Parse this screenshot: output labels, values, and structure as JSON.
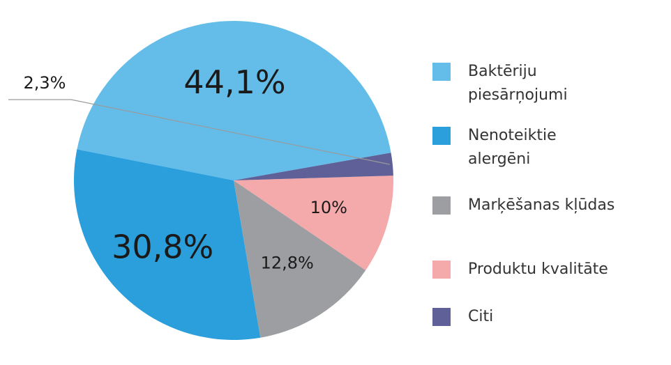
{
  "chart_data": {
    "type": "pie",
    "categories": [
      "Baktēriju piesārņojumi",
      "Nenoteiktie alergēni",
      "Marķēšanas kļūdas",
      "Produktu kvalitāte",
      "Citi"
    ],
    "values": [
      44.1,
      30.8,
      12.8,
      10,
      2.3
    ],
    "value_labels": [
      "44,1%",
      "30,8%",
      "12,8%",
      "10%",
      "2,3%"
    ],
    "colors": [
      "#64bde9",
      "#2a9fdc",
      "#9d9ea1",
      "#f4a9aa",
      "#5e6097"
    ],
    "legend_position": "right"
  },
  "legend": {
    "items": [
      {
        "label": "Baktēriju piesārņojumi",
        "color": "#64bde9"
      },
      {
        "label": "Nenoteiktie alergēni",
        "color": "#2a9fdc"
      },
      {
        "label": "Marķēšanas kļūdas",
        "color": "#9d9ea1"
      },
      {
        "label": "Produktu kvalitāte",
        "color": "#f4a9aa"
      },
      {
        "label": "Citi",
        "color": "#5e6097"
      }
    ]
  }
}
